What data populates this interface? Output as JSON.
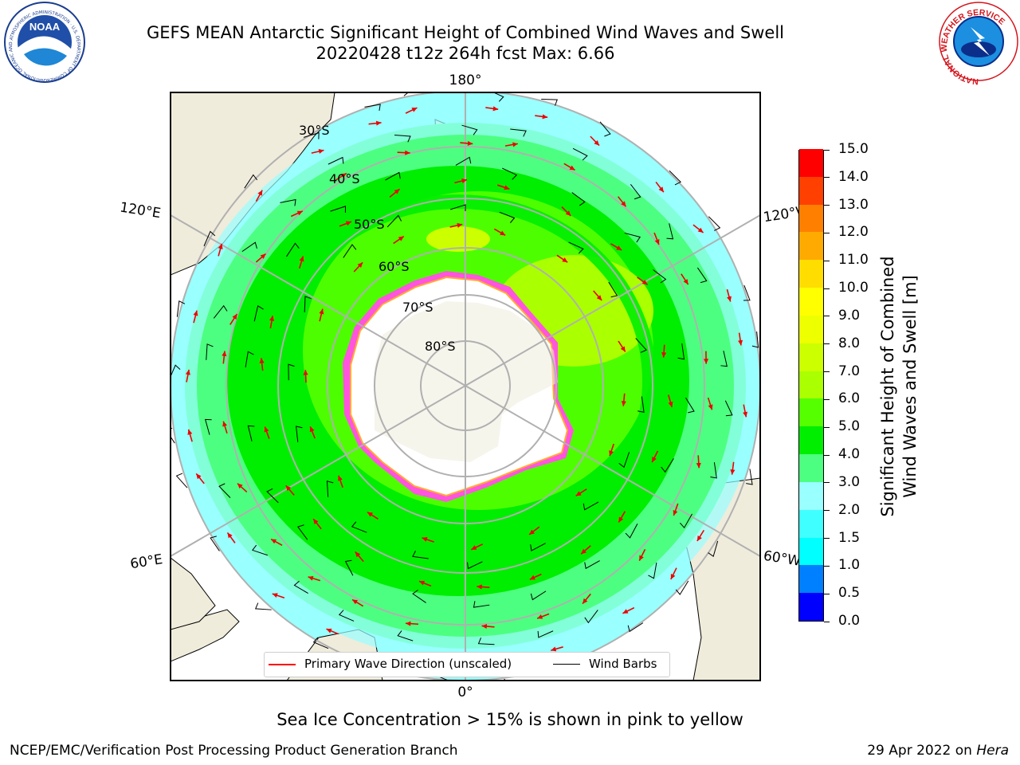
{
  "header": {
    "title_line1": "GEFS MEAN Antarctic Significant Height of Combined Wind Waves and Swell",
    "title_line2": "20220428 t12z 264h fcst   Max: 6.66"
  },
  "logos": {
    "noaa": {
      "text": "NOAA",
      "ring_text": "NATIONAL OCEANIC AND ATMOSPHERIC ADMINISTRATION · U.S. DEPARTMENT OF COMMERCE"
    },
    "nws": {
      "ring_text": "NATIONAL WEATHER SERVICE"
    }
  },
  "map": {
    "projection": "south-polar-stereographic",
    "lon_labels": {
      "top": "180°",
      "bottom": "0°",
      "upper_left": "120°E",
      "upper_right": "120°W",
      "lower_left": "60°E",
      "lower_right": "60°W"
    },
    "lat_labels": [
      "30°S",
      "40°S",
      "50°S",
      "60°S",
      "70°S",
      "80°S"
    ],
    "colors": {
      "land": "#efecdc",
      "ice_edge_pink": "#ff55dd",
      "antarctica": "#ffffff",
      "gridline": "#b0b0b0",
      "wave_arrow": "#ee0000"
    },
    "max_value": 6.66
  },
  "colorbar": {
    "title_line1": "Significant Height of Combined",
    "title_line2": "Wind Waves and Swell [m]",
    "levels": [
      "0.0",
      "0.5",
      "1.0",
      "1.5",
      "2.0",
      "3.0",
      "4.0",
      "5.0",
      "6.0",
      "7.0",
      "8.0",
      "9.0",
      "10.0",
      "11.0",
      "12.0",
      "13.0",
      "14.0",
      "15.0"
    ],
    "colors": [
      "#0000ff",
      "#0080ff",
      "#00ffff",
      "#40ffff",
      "#99ffff",
      "#4dff80",
      "#00ee00",
      "#55ff00",
      "#aaff00",
      "#ccff00",
      "#eeff00",
      "#ffff00",
      "#ffdd00",
      "#ffaa00",
      "#ff8000",
      "#ff4000",
      "#ff0000"
    ]
  },
  "legend": {
    "wave_label": "Primary Wave Direction (unscaled)",
    "wind_label": "Wind Barbs",
    "wave_color": "#ff0000",
    "wind_color": "#000000"
  },
  "notes": {
    "ice": "Sea Ice Concentration > 15% is shown in pink to yellow"
  },
  "footer": {
    "left": "NCEP/EMC/Verification Post Processing Product Generation Branch",
    "right_prefix": "29 Apr 2022 on ",
    "right_host": "Hera"
  }
}
